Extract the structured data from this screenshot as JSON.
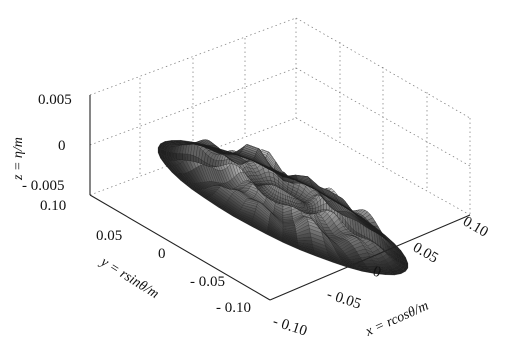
{
  "chart_data": {
    "type": "surface3d",
    "description_of_data": "",
    "title": "",
    "xlabel": "x = rcosθ/m",
    "ylabel": "y = rsinθ/m",
    "zlabel": "z = η/m",
    "xlim": [
      -0.1,
      0.1
    ],
    "ylim": [
      -0.1,
      0.1
    ],
    "zlim": [
      -0.005,
      0.005
    ],
    "x_ticks": [
      "- 0.10",
      "- 0.05",
      "0",
      "0.05",
      "0.10"
    ],
    "y_ticks": [
      "0.10",
      "0.05",
      "0",
      "- 0.05",
      "- 0.10"
    ],
    "z_ticks": [
      "0.005",
      "0",
      "- 0.005"
    ],
    "grid": true,
    "surface": {
      "extent_r": 0.1,
      "bumps": [
        {
          "x": 0.0,
          "y": 0.0,
          "z": 0.004
        },
        {
          "x": 0.04,
          "y": 0.0,
          "z": 0.004
        },
        {
          "x": -0.04,
          "y": 0.0,
          "z": 0.004
        },
        {
          "x": 0.0,
          "y": 0.04,
          "z": 0.004
        },
        {
          "x": 0.0,
          "y": -0.04,
          "z": 0.004
        },
        {
          "x": 0.03,
          "y": 0.03,
          "z": 0.003
        },
        {
          "x": -0.03,
          "y": 0.03,
          "z": 0.003
        },
        {
          "x": 0.03,
          "y": -0.03,
          "z": 0.003
        },
        {
          "x": -0.03,
          "y": -0.03,
          "z": 0.003
        },
        {
          "x": 0.07,
          "y": 0.0,
          "z": 0.003
        },
        {
          "x": -0.07,
          "y": 0.0,
          "z": 0.003
        },
        {
          "x": 0.0,
          "y": 0.07,
          "z": 0.003
        },
        {
          "x": 0.0,
          "y": -0.07,
          "z": 0.003
        },
        {
          "x": 0.06,
          "y": 0.04,
          "z": 0.002
        },
        {
          "x": -0.06,
          "y": 0.04,
          "z": 0.002
        },
        {
          "x": 0.06,
          "y": -0.04,
          "z": 0.002
        },
        {
          "x": -0.06,
          "y": -0.04,
          "z": 0.002
        },
        {
          "x": 0.04,
          "y": 0.06,
          "z": 0.002
        },
        {
          "x": -0.04,
          "y": 0.06,
          "z": 0.002
        },
        {
          "x": 0.04,
          "y": -0.06,
          "z": 0.002
        },
        {
          "x": -0.04,
          "y": -0.06,
          "z": 0.002
        }
      ]
    }
  }
}
